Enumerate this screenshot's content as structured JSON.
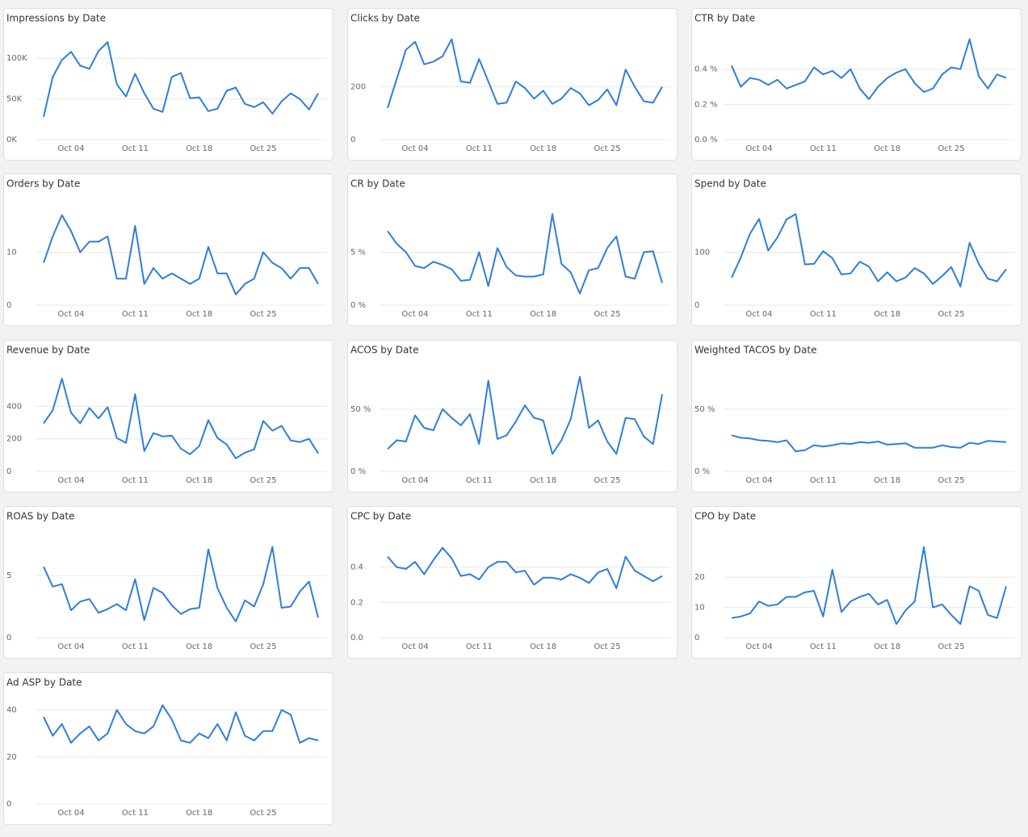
{
  "chart_data": [
    {
      "type": "line",
      "title": "Impressions by Date",
      "categories": [
        null,
        null,
        null,
        "Oct 04",
        null,
        null,
        null,
        null,
        null,
        null,
        "Oct 11",
        null,
        null,
        null,
        null,
        null,
        null,
        "Oct 18",
        null,
        null,
        null,
        null,
        null,
        null,
        "Oct 25",
        null,
        null,
        null,
        null,
        null,
        null
      ],
      "series": [
        {
          "color": "#2f7ed8",
          "values": [
            28000,
            77000,
            98000,
            108000,
            91000,
            87000,
            109000,
            120000,
            68000,
            53000,
            81000,
            57000,
            38000,
            34000,
            77000,
            82000,
            51000,
            52000,
            35000,
            38000,
            60000,
            64000,
            44000,
            40000,
            46000,
            32000,
            47000,
            57000,
            50000,
            37000,
            57000
          ]
        }
      ],
      "ylim": [
        0,
        130000
      ],
      "yticks": [
        {
          "value": 0,
          "label": "0K"
        },
        {
          "value": 50000,
          "label": "50K"
        },
        {
          "value": 100000,
          "label": "100K"
        }
      ],
      "grid": true
    },
    {
      "type": "line",
      "title": "Clicks by Date",
      "categories": [
        null,
        null,
        null,
        "Oct 04",
        null,
        null,
        null,
        null,
        null,
        null,
        "Oct 11",
        null,
        null,
        null,
        null,
        null,
        null,
        "Oct 18",
        null,
        null,
        null,
        null,
        null,
        null,
        "Oct 25",
        null,
        null,
        null,
        null,
        null,
        null
      ],
      "series": [
        {
          "color": "#2f7ed8",
          "values": [
            120,
            230,
            340,
            370,
            285,
            295,
            315,
            380,
            220,
            215,
            305,
            220,
            135,
            140,
            220,
            195,
            155,
            185,
            135,
            155,
            195,
            175,
            130,
            150,
            190,
            130,
            265,
            200,
            145,
            140,
            200
          ]
        }
      ],
      "ylim": [
        0,
        400
      ],
      "yticks": [
        0,
        200
      ],
      "grid": true
    },
    {
      "type": "line",
      "title": "CTR by Date",
      "categories": [
        null,
        null,
        null,
        "Oct 04",
        null,
        null,
        null,
        null,
        null,
        null,
        "Oct 11",
        null,
        null,
        null,
        null,
        null,
        null,
        "Oct 18",
        null,
        null,
        null,
        null,
        null,
        null,
        "Oct 25",
        null,
        null,
        null,
        null,
        null,
        null
      ],
      "series": [
        {
          "color": "#2f7ed8",
          "values": [
            0.42,
            0.3,
            0.35,
            0.34,
            0.31,
            0.34,
            0.29,
            0.31,
            0.33,
            0.41,
            0.37,
            0.39,
            0.35,
            0.4,
            0.29,
            0.23,
            0.3,
            0.35,
            0.38,
            0.4,
            0.32,
            0.27,
            0.29,
            0.37,
            0.41,
            0.4,
            0.57,
            0.36,
            0.29,
            0.37,
            0.35
          ]
        }
      ],
      "ylim": [
        0,
        0.6
      ],
      "yticks": [
        {
          "value": 0,
          "label": "0.0 %"
        },
        {
          "value": 0.2,
          "label": "0.2 %"
        },
        {
          "value": 0.4,
          "label": "0.4 %"
        }
      ],
      "grid": true
    },
    {
      "type": "line",
      "title": "Orders by Date",
      "categories": [
        null,
        null,
        null,
        "Oct 04",
        null,
        null,
        null,
        null,
        null,
        null,
        "Oct 11",
        null,
        null,
        null,
        null,
        null,
        null,
        "Oct 18",
        null,
        null,
        null,
        null,
        null,
        null,
        "Oct 25",
        null,
        null,
        null,
        null,
        null,
        null
      ],
      "series": [
        {
          "color": "#2f7ed8",
          "values": [
            8,
            13,
            17,
            14,
            10,
            12,
            12,
            13,
            5,
            5,
            15,
            4,
            7,
            5,
            6,
            5,
            4,
            5,
            11,
            6,
            6,
            2,
            4,
            5,
            10,
            8,
            7,
            5,
            7,
            7,
            4
          ]
        }
      ],
      "ylim": [
        0,
        20
      ],
      "yticks": [
        0,
        10
      ],
      "grid": true
    },
    {
      "type": "line",
      "title": "CR by Date",
      "categories": [
        null,
        null,
        null,
        "Oct 04",
        null,
        null,
        null,
        null,
        null,
        null,
        "Oct 11",
        null,
        null,
        null,
        null,
        null,
        null,
        "Oct 18",
        null,
        null,
        null,
        null,
        null,
        null,
        "Oct 25",
        null,
        null,
        null,
        null,
        null,
        null
      ],
      "series": [
        {
          "color": "#2f7ed8",
          "values": [
            7.0,
            5.8,
            5.0,
            3.7,
            3.5,
            4.1,
            3.8,
            3.4,
            2.3,
            2.4,
            5.0,
            1.8,
            5.4,
            3.6,
            2.8,
            2.7,
            2.7,
            2.9,
            8.6,
            3.9,
            3.1,
            1.1,
            3.3,
            3.5,
            5.4,
            6.5,
            2.7,
            2.5,
            5.0,
            5.1,
            2.1
          ]
        }
      ],
      "ylim": [
        0,
        10
      ],
      "yticks": [
        {
          "value": 0,
          "label": "0 %"
        },
        {
          "value": 5,
          "label": "5 %"
        }
      ],
      "grid": true
    },
    {
      "type": "line",
      "title": "Spend by Date",
      "categories": [
        null,
        null,
        null,
        "Oct 04",
        null,
        null,
        null,
        null,
        null,
        null,
        "Oct 11",
        null,
        null,
        null,
        null,
        null,
        null,
        "Oct 18",
        null,
        null,
        null,
        null,
        null,
        null,
        "Oct 25",
        null,
        null,
        null,
        null,
        null,
        null
      ],
      "series": [
        {
          "color": "#2f7ed8",
          "values": [
            52,
            90,
            135,
            163,
            103,
            128,
            162,
            172,
            77,
            78,
            102,
            89,
            58,
            60,
            82,
            73,
            45,
            62,
            45,
            52,
            70,
            60,
            40,
            55,
            72,
            35,
            118,
            78,
            50,
            45,
            68
          ]
        }
      ],
      "ylim": [
        0,
        200
      ],
      "yticks": [
        0,
        100
      ],
      "grid": true
    },
    {
      "type": "line",
      "title": "Revenue by Date",
      "categories": [
        null,
        null,
        null,
        "Oct 04",
        null,
        null,
        null,
        null,
        null,
        null,
        "Oct 11",
        null,
        null,
        null,
        null,
        null,
        null,
        "Oct 18",
        null,
        null,
        null,
        null,
        null,
        null,
        "Oct 25",
        null,
        null,
        null,
        null,
        null,
        null
      ],
      "series": [
        {
          "color": "#2f7ed8",
          "values": [
            295,
            375,
            570,
            360,
            295,
            390,
            325,
            395,
            205,
            175,
            475,
            125,
            235,
            215,
            220,
            140,
            105,
            155,
            315,
            205,
            165,
            80,
            115,
            135,
            310,
            250,
            280,
            190,
            180,
            200,
            110
          ]
        }
      ],
      "ylim": [
        0,
        650
      ],
      "yticks": [
        0,
        200,
        400
      ],
      "grid": true
    },
    {
      "type": "line",
      "title": "ACOS by Date",
      "categories": [
        null,
        null,
        null,
        "Oct 04",
        null,
        null,
        null,
        null,
        null,
        null,
        "Oct 11",
        null,
        null,
        null,
        null,
        null,
        null,
        "Oct 18",
        null,
        null,
        null,
        null,
        null,
        null,
        "Oct 25",
        null,
        null,
        null,
        null,
        null,
        null
      ],
      "series": [
        {
          "color": "#2f7ed8",
          "values": [
            18,
            25,
            24,
            45,
            35,
            33,
            50,
            43,
            37,
            46,
            22,
            73,
            26,
            29,
            40,
            53,
            43,
            41,
            14,
            25,
            42,
            76,
            35,
            41,
            24,
            14,
            43,
            42,
            28,
            22,
            62
          ]
        }
      ],
      "ylim": [
        0,
        85
      ],
      "yticks": [
        {
          "value": 0,
          "label": "0 %"
        },
        {
          "value": 50,
          "label": "50 %"
        }
      ],
      "grid": true
    },
    {
      "type": "line",
      "title": "Weighted TACOS by Date",
      "categories": [
        null,
        null,
        null,
        "Oct 04",
        null,
        null,
        null,
        null,
        null,
        null,
        "Oct 11",
        null,
        null,
        null,
        null,
        null,
        null,
        "Oct 18",
        null,
        null,
        null,
        null,
        null,
        null,
        "Oct 25",
        null,
        null,
        null,
        null,
        null,
        null
      ],
      "series": [
        {
          "color": "#2f7ed8",
          "values": [
            29,
            27,
            26.5,
            25,
            24.5,
            23.5,
            25,
            16,
            17,
            21,
            20,
            21,
            22.5,
            22,
            23.5,
            23,
            24,
            21.5,
            22,
            22.5,
            19,
            19,
            19,
            21,
            19.5,
            19,
            23,
            22,
            24.5,
            24,
            23.5
          ]
        }
      ],
      "ylim": [
        0,
        85
      ],
      "yticks": [
        {
          "value": 0,
          "label": "0 %"
        },
        {
          "value": 50,
          "label": "50 %"
        }
      ],
      "grid": true
    },
    {
      "type": "line",
      "title": "ROAS by Date",
      "categories": [
        null,
        null,
        null,
        "Oct 04",
        null,
        null,
        null,
        null,
        null,
        null,
        "Oct 11",
        null,
        null,
        null,
        null,
        null,
        null,
        "Oct 18",
        null,
        null,
        null,
        null,
        null,
        null,
        "Oct 25",
        null,
        null,
        null,
        null,
        null,
        null
      ],
      "series": [
        {
          "color": "#2f7ed8",
          "values": [
            5.7,
            4.1,
            4.3,
            2.2,
            2.9,
            3.1,
            2.0,
            2.3,
            2.7,
            2.2,
            4.7,
            1.4,
            4.0,
            3.6,
            2.6,
            1.9,
            2.3,
            2.4,
            7.1,
            4.0,
            2.4,
            1.3,
            3.0,
            2.5,
            4.3,
            7.3,
            2.4,
            2.5,
            3.7,
            4.5,
            1.6
          ]
        }
      ],
      "ylim": [
        0,
        8.5
      ],
      "yticks": [
        0,
        5
      ],
      "grid": true
    },
    {
      "type": "line",
      "title": "CPC by Date",
      "categories": [
        null,
        null,
        null,
        "Oct 04",
        null,
        null,
        null,
        null,
        null,
        null,
        "Oct 11",
        null,
        null,
        null,
        null,
        null,
        null,
        "Oct 18",
        null,
        null,
        null,
        null,
        null,
        null,
        "Oct 25",
        null,
        null,
        null,
        null,
        null,
        null
      ],
      "series": [
        {
          "color": "#2f7ed8",
          "values": [
            0.46,
            0.4,
            0.39,
            0.43,
            0.36,
            0.44,
            0.51,
            0.45,
            0.35,
            0.36,
            0.33,
            0.4,
            0.43,
            0.43,
            0.37,
            0.38,
            0.3,
            0.34,
            0.34,
            0.33,
            0.36,
            0.34,
            0.31,
            0.37,
            0.39,
            0.28,
            0.46,
            0.38,
            0.35,
            0.32,
            0.35
          ]
        }
      ],
      "ylim": [
        0,
        0.6
      ],
      "yticks": [
        {
          "value": 0,
          "label": "0.0"
        },
        0.2,
        0.4
      ],
      "grid": true
    },
    {
      "type": "line",
      "title": "CPO by Date",
      "categories": [
        null,
        null,
        null,
        "Oct 04",
        null,
        null,
        null,
        null,
        null,
        null,
        "Oct 11",
        null,
        null,
        null,
        null,
        null,
        null,
        "Oct 18",
        null,
        null,
        null,
        null,
        null,
        null,
        "Oct 25",
        null,
        null,
        null,
        null,
        null,
        null
      ],
      "series": [
        {
          "color": "#2f7ed8",
          "values": [
            6.5,
            7,
            8,
            12,
            10.5,
            11,
            13.5,
            13.5,
            15,
            15.5,
            7,
            22.5,
            8.5,
            12,
            13.5,
            14.5,
            11,
            12.5,
            4.5,
            9,
            12,
            30,
            10,
            11,
            7.5,
            4.5,
            17,
            15.5,
            7.5,
            6.5,
            17
          ]
        }
      ],
      "ylim": [
        0,
        35
      ],
      "yticks": [
        0,
        10,
        20
      ],
      "grid": true
    },
    {
      "type": "line",
      "title": "Ad ASP by Date",
      "categories": [
        null,
        null,
        null,
        "Oct 04",
        null,
        null,
        null,
        null,
        null,
        null,
        "Oct 11",
        null,
        null,
        null,
        null,
        null,
        null,
        "Oct 18",
        null,
        null,
        null,
        null,
        null,
        null,
        "Oct 25",
        null,
        null,
        null,
        null,
        null,
        null
      ],
      "series": [
        {
          "color": "#2f7ed8",
          "values": [
            37,
            29,
            34,
            26,
            30,
            33,
            27,
            30,
            40,
            34,
            31,
            30,
            33,
            42,
            36,
            27,
            26,
            30,
            28,
            34,
            27,
            39,
            29,
            27,
            31,
            31,
            40,
            38,
            26,
            28,
            27
          ]
        }
      ],
      "ylim": [
        0,
        45
      ],
      "yticks": [
        0,
        20,
        40
      ],
      "grid": true
    }
  ]
}
